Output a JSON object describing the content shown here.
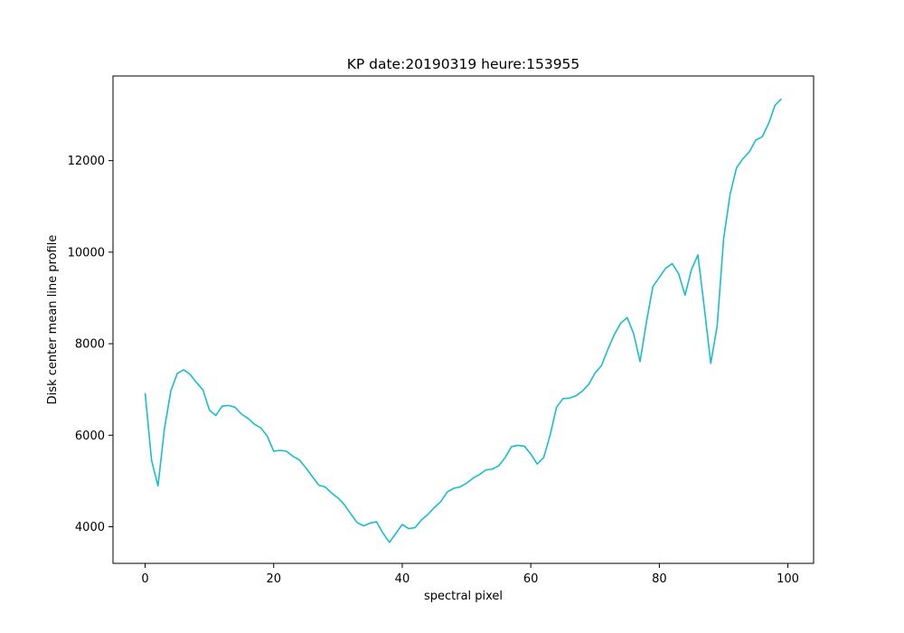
{
  "chart_data": {
    "type": "line",
    "title": "KP date:20190319 heure:153955",
    "xlabel": "spectral pixel",
    "ylabel": "Disk center mean line profile",
    "xlim": [
      -5,
      104
    ],
    "ylim": [
      3200,
      13850
    ],
    "xticks": [
      0,
      20,
      40,
      60,
      80,
      100
    ],
    "yticks": [
      4000,
      6000,
      8000,
      10000,
      12000
    ],
    "grid": false,
    "line_color": "#17becf",
    "series": [
      {
        "x": [
          0,
          1,
          2,
          3,
          4,
          5,
          6,
          7,
          8,
          9,
          10,
          11,
          12,
          13,
          14,
          15,
          16,
          17,
          18,
          19,
          20,
          21,
          22,
          23,
          24,
          25,
          26,
          27,
          28,
          29,
          30,
          31,
          32,
          33,
          34,
          35,
          36,
          37,
          38,
          39,
          40,
          41,
          42,
          43,
          44,
          45,
          46,
          47,
          48,
          49,
          50,
          51,
          52,
          53,
          54,
          55,
          56,
          57,
          58,
          59,
          60,
          61,
          62,
          63,
          64,
          65,
          66,
          67,
          68,
          69,
          70,
          71,
          72,
          73,
          74,
          75,
          76,
          77,
          78,
          79,
          80,
          81,
          82,
          83,
          84,
          85,
          86,
          87,
          88,
          89,
          90,
          91,
          92,
          93,
          94,
          95,
          96,
          97,
          98,
          99
        ],
        "y": [
          6920,
          5450,
          4890,
          6140,
          6970,
          7350,
          7430,
          7330,
          7150,
          6990,
          6550,
          6430,
          6640,
          6650,
          6610,
          6460,
          6370,
          6240,
          6160,
          5980,
          5650,
          5670,
          5650,
          5540,
          5460,
          5290,
          5100,
          4910,
          4870,
          4740,
          4630,
          4480,
          4280,
          4090,
          4020,
          4080,
          4110,
          3860,
          3660,
          3850,
          4050,
          3960,
          3980,
          4150,
          4270,
          4420,
          4550,
          4760,
          4840,
          4870,
          4950,
          5060,
          5140,
          5240,
          5260,
          5330,
          5510,
          5750,
          5780,
          5760,
          5590,
          5370,
          5510,
          6000,
          6610,
          6800,
          6810,
          6860,
          6960,
          7110,
          7360,
          7520,
          7880,
          8200,
          8450,
          8570,
          8220,
          7610,
          8480,
          9250,
          9450,
          9650,
          9750,
          9530,
          9060,
          9620,
          9940,
          8780,
          7570,
          8390,
          10290,
          11260,
          11840,
          12040,
          12190,
          12450,
          12520,
          12810,
          13210,
          13350
        ]
      }
    ]
  }
}
